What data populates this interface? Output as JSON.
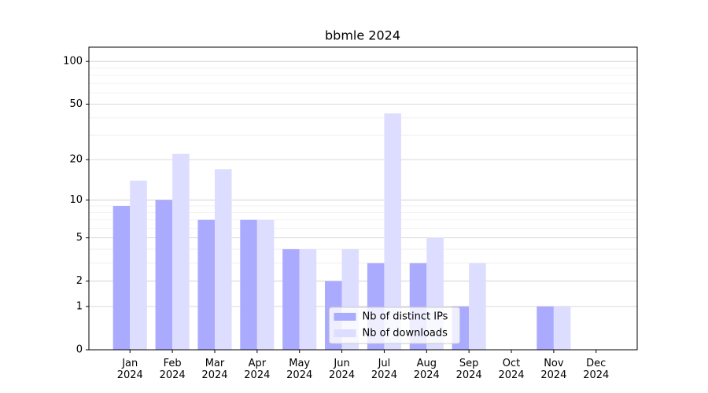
{
  "chart_data": {
    "type": "bar",
    "title": "bbmle 2024",
    "categories": [
      "Jan 2024",
      "Feb 2024",
      "Mar 2024",
      "Apr 2024",
      "May 2024",
      "Jun 2024",
      "Jul 2024",
      "Aug 2024",
      "Sep 2024",
      "Oct 2024",
      "Nov 2024",
      "Dec 2024"
    ],
    "series": [
      {
        "name": "Nb of distinct IPs",
        "color": "#aaaaff",
        "values": [
          9,
          10,
          7,
          7,
          4,
          2,
          3,
          3,
          1,
          0,
          1,
          0
        ]
      },
      {
        "name": "Nb of downloads",
        "color": "#ddddff",
        "values": [
          14,
          22,
          17,
          7,
          4,
          4,
          43,
          5,
          3,
          0,
          1,
          0
        ]
      }
    ],
    "yscale": "log1p",
    "ylim": [
      0,
      126
    ],
    "yticks": [
      0,
      1,
      2,
      5,
      10,
      20,
      50,
      100
    ],
    "yminorticks": [
      3,
      4,
      6,
      7,
      8,
      9,
      30,
      40,
      60,
      70,
      80,
      90
    ],
    "grid": true,
    "legend": "lower center"
  }
}
